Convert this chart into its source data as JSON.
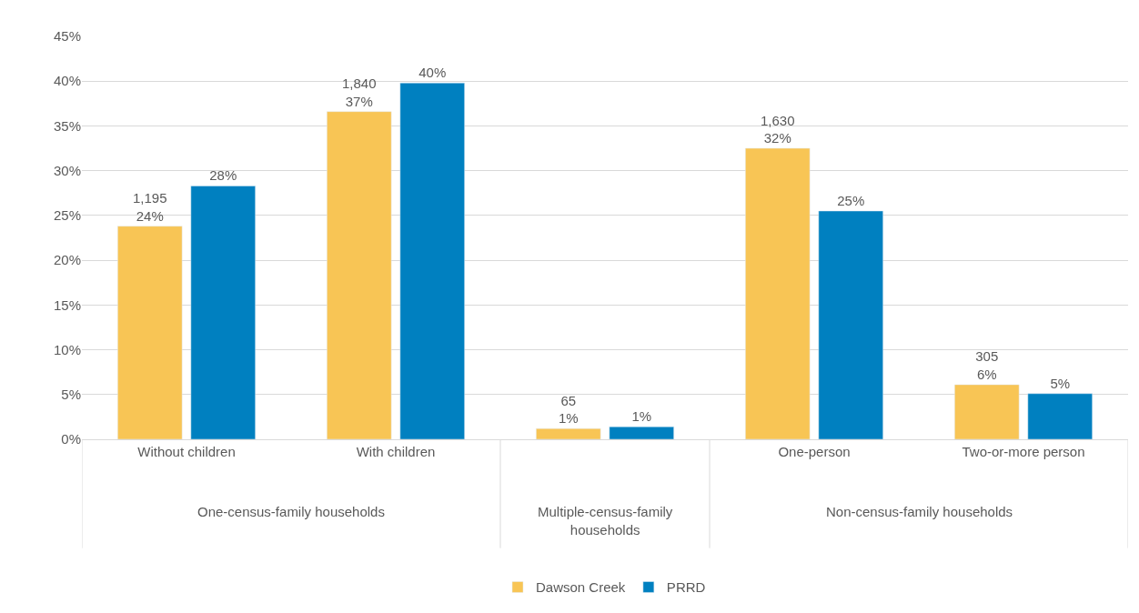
{
  "chart_data": {
    "type": "bar",
    "categories": [
      "Without children",
      "With children",
      null,
      "One-person",
      "Two-or-more person"
    ],
    "series": [
      {
        "name": "Dawson Creek",
        "color": "#f8c555",
        "values": [
          23.8,
          36.6,
          1.2,
          32.5,
          6.1
        ],
        "value_labels": [
          "1,195\n24%",
          "1,840\n37%",
          "65\n1%",
          "1,630\n32%",
          "305\n6%"
        ]
      },
      {
        "name": "PRRD",
        "color": "#0080c0",
        "values": [
          28.3,
          39.8,
          1.4,
          25.5,
          5.1
        ],
        "value_labels": [
          "28%",
          "40%",
          "1%",
          "25%",
          "5%"
        ]
      }
    ],
    "annotations": [
      "One-census-family households",
      "Multiple-census-family\nhouseholds",
      "Non-census-family households"
    ],
    "ylim": [
      0,
      45
    ],
    "yticks": [
      {
        "value": 0,
        "label": "0%"
      },
      {
        "value": 5,
        "label": "5%"
      },
      {
        "value": 10,
        "label": "10%"
      },
      {
        "value": 15,
        "label": "15%"
      },
      {
        "value": 20,
        "label": "20%"
      },
      {
        "value": 25,
        "label": "25%"
      },
      {
        "value": 30,
        "label": "30%"
      },
      {
        "value": 35,
        "label": "35%"
      },
      {
        "value": 40,
        "label": "40%"
      },
      {
        "value": 45,
        "label": "45%"
      }
    ],
    "grid": "y",
    "legend": "bottom"
  }
}
